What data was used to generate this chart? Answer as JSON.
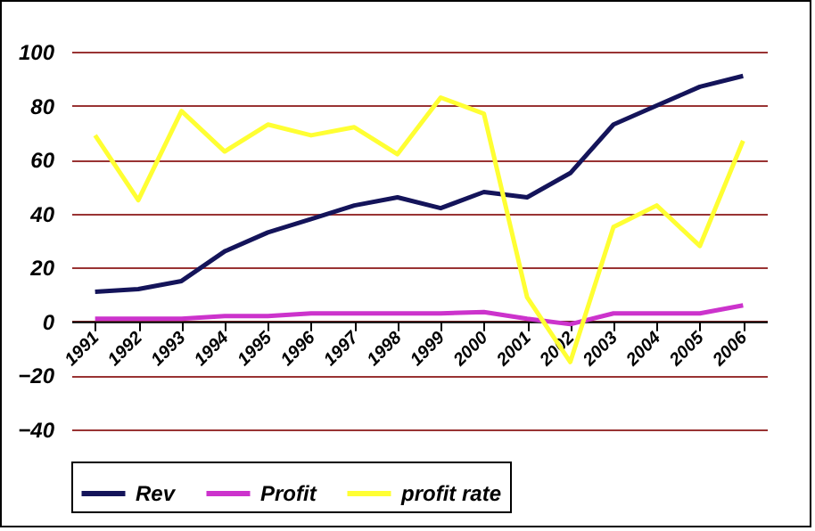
{
  "chart_data": {
    "type": "line",
    "categories": [
      "1991",
      "1992",
      "1993",
      "1994",
      "1995",
      "1996",
      "1997",
      "1998",
      "1999",
      "2000",
      "2001",
      "2002",
      "2003",
      "2004",
      "2005",
      "2006"
    ],
    "series": [
      {
        "name": "Rev",
        "color": "#14145a",
        "values": [
          11,
          12,
          15,
          26,
          33,
          38,
          43,
          46,
          42,
          48,
          46,
          55,
          73,
          80,
          87,
          91
        ]
      },
      {
        "name": "Profit",
        "color": "#cc33cc",
        "values": [
          1,
          1,
          1,
          2,
          2,
          3,
          3,
          3,
          3,
          3.5,
          1,
          -1,
          3,
          3,
          3,
          6
        ]
      },
      {
        "name": "profit rate",
        "color": "#ffff33",
        "values": [
          69,
          45,
          78,
          63,
          73,
          69,
          72,
          62,
          83,
          77,
          9,
          -15,
          35,
          43,
          28,
          67
        ]
      }
    ],
    "ylim": [
      -40,
      100
    ],
    "yticks": [
      -40,
      -20,
      0,
      20,
      40,
      60,
      80,
      100
    ],
    "grid": "y",
    "legend": "bottom",
    "marker": "none",
    "line_style": "solid"
  }
}
